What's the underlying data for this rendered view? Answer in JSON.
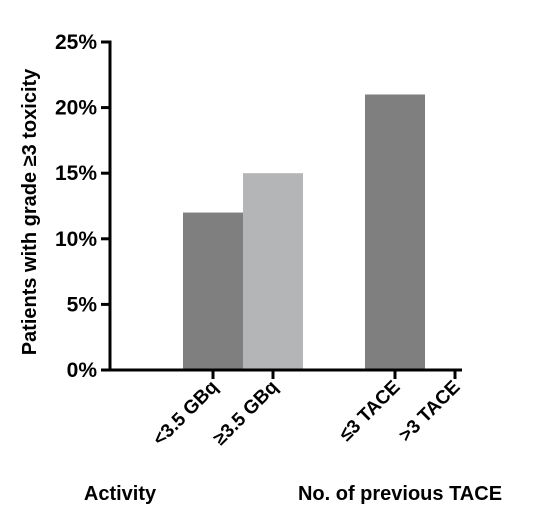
{
  "chart_data": {
    "type": "bar",
    "ylabel": "Patients with grade ≥3 toxicity",
    "ylim": [
      0,
      25
    ],
    "yticks": [
      {
        "value": 0,
        "label": "0%"
      },
      {
        "value": 5,
        "label": "5%"
      },
      {
        "value": 10,
        "label": "10%"
      },
      {
        "value": 15,
        "label": "15%"
      },
      {
        "value": 20,
        "label": "20%"
      },
      {
        "value": 25,
        "label": "25%"
      }
    ],
    "groups": [
      {
        "name": "Activity",
        "bars": [
          {
            "category": "<3.5 GBq",
            "value": 12,
            "color": "#7f7f7f"
          },
          {
            "category": "≥3.5 GBq",
            "value": 15,
            "color": "#b3b5b6"
          }
        ]
      },
      {
        "name": "No. of previous TACE",
        "bars": [
          {
            "category": "≤3 TACE",
            "value": 21,
            "color": "#7f7f7f"
          },
          {
            "category": ">3 TACE",
            "value": 0,
            "color": "#b3b5b6"
          }
        ]
      }
    ],
    "grid": false,
    "legend": "none"
  }
}
